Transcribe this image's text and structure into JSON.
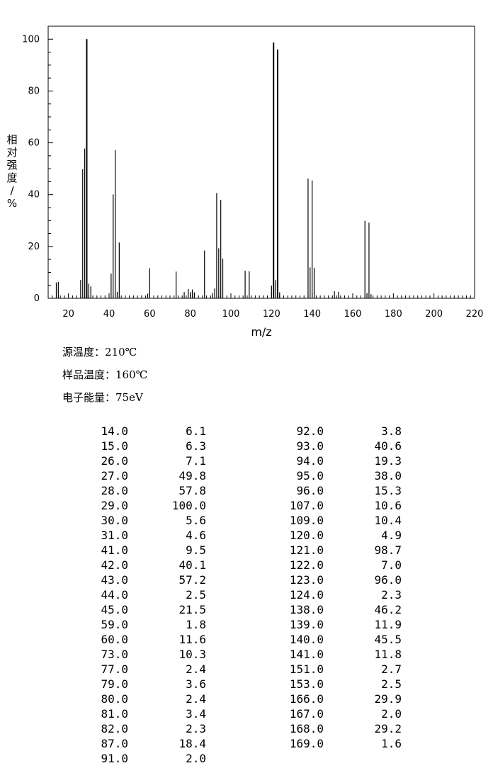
{
  "chart_data": {
    "type": "bar",
    "xlabel": "m/z",
    "ylabel": "相对强度/%",
    "ylabel_chars": [
      "相",
      "对",
      "强",
      "度",
      "/",
      "%"
    ],
    "xlim": [
      10,
      220
    ],
    "ylim": [
      0,
      105
    ],
    "xticks": [
      20,
      40,
      60,
      80,
      100,
      120,
      140,
      160,
      180,
      200,
      220
    ],
    "yticks": [
      0,
      20,
      40,
      60,
      80,
      100
    ],
    "grid": false,
    "x": [
      14,
      15,
      26,
      27,
      28,
      29,
      30,
      31,
      41,
      42,
      43,
      44,
      45,
      59,
      60,
      73,
      77,
      79,
      80,
      81,
      82,
      87,
      91,
      92,
      93,
      94,
      95,
      96,
      107,
      109,
      120,
      121,
      122,
      123,
      124,
      138,
      139,
      140,
      141,
      151,
      153,
      166,
      167,
      168,
      169
    ],
    "values": [
      6.1,
      6.3,
      7.1,
      49.8,
      57.8,
      100.0,
      5.6,
      4.6,
      9.5,
      40.1,
      57.2,
      2.5,
      21.5,
      1.8,
      11.6,
      10.3,
      2.4,
      3.6,
      2.4,
      3.4,
      2.3,
      18.4,
      2.0,
      3.8,
      40.6,
      19.3,
      38.0,
      15.3,
      10.6,
      10.4,
      4.9,
      98.7,
      7.0,
      96.0,
      2.3,
      46.2,
      11.9,
      45.5,
      11.8,
      2.7,
      2.5,
      29.9,
      2.0,
      29.2,
      1.6
    ]
  },
  "conditions": {
    "source_temp": "源温度：210℃",
    "sample_temp": "样品温度：160℃",
    "electron_energy": "电子能量：75eV"
  },
  "peak_table": {
    "left": [
      [
        "14.0",
        "6.1"
      ],
      [
        "15.0",
        "6.3"
      ],
      [
        "26.0",
        "7.1"
      ],
      [
        "27.0",
        "49.8"
      ],
      [
        "28.0",
        "57.8"
      ],
      [
        "29.0",
        "100.0"
      ],
      [
        "30.0",
        "5.6"
      ],
      [
        "31.0",
        "4.6"
      ],
      [
        "41.0",
        "9.5"
      ],
      [
        "42.0",
        "40.1"
      ],
      [
        "43.0",
        "57.2"
      ],
      [
        "44.0",
        "2.5"
      ],
      [
        "45.0",
        "21.5"
      ],
      [
        "59.0",
        "1.8"
      ],
      [
        "60.0",
        "11.6"
      ],
      [
        "73.0",
        "10.3"
      ],
      [
        "77.0",
        "2.4"
      ],
      [
        "79.0",
        "3.6"
      ],
      [
        "80.0",
        "2.4"
      ],
      [
        "81.0",
        "3.4"
      ],
      [
        "82.0",
        "2.3"
      ],
      [
        "87.0",
        "18.4"
      ],
      [
        "91.0",
        "2.0"
      ]
    ],
    "right": [
      [
        "92.0",
        "3.8"
      ],
      [
        "93.0",
        "40.6"
      ],
      [
        "94.0",
        "19.3"
      ],
      [
        "95.0",
        "38.0"
      ],
      [
        "96.0",
        "15.3"
      ],
      [
        "107.0",
        "10.6"
      ],
      [
        "109.0",
        "10.4"
      ],
      [
        "120.0",
        "4.9"
      ],
      [
        "121.0",
        "98.7"
      ],
      [
        "122.0",
        "7.0"
      ],
      [
        "123.0",
        "96.0"
      ],
      [
        "124.0",
        "2.3"
      ],
      [
        "138.0",
        "46.2"
      ],
      [
        "139.0",
        "11.9"
      ],
      [
        "140.0",
        "45.5"
      ],
      [
        "141.0",
        "11.8"
      ],
      [
        "151.0",
        "2.7"
      ],
      [
        "153.0",
        "2.5"
      ],
      [
        "166.0",
        "29.9"
      ],
      [
        "167.0",
        "2.0"
      ],
      [
        "168.0",
        "29.2"
      ],
      [
        "169.0",
        "1.6"
      ]
    ]
  }
}
